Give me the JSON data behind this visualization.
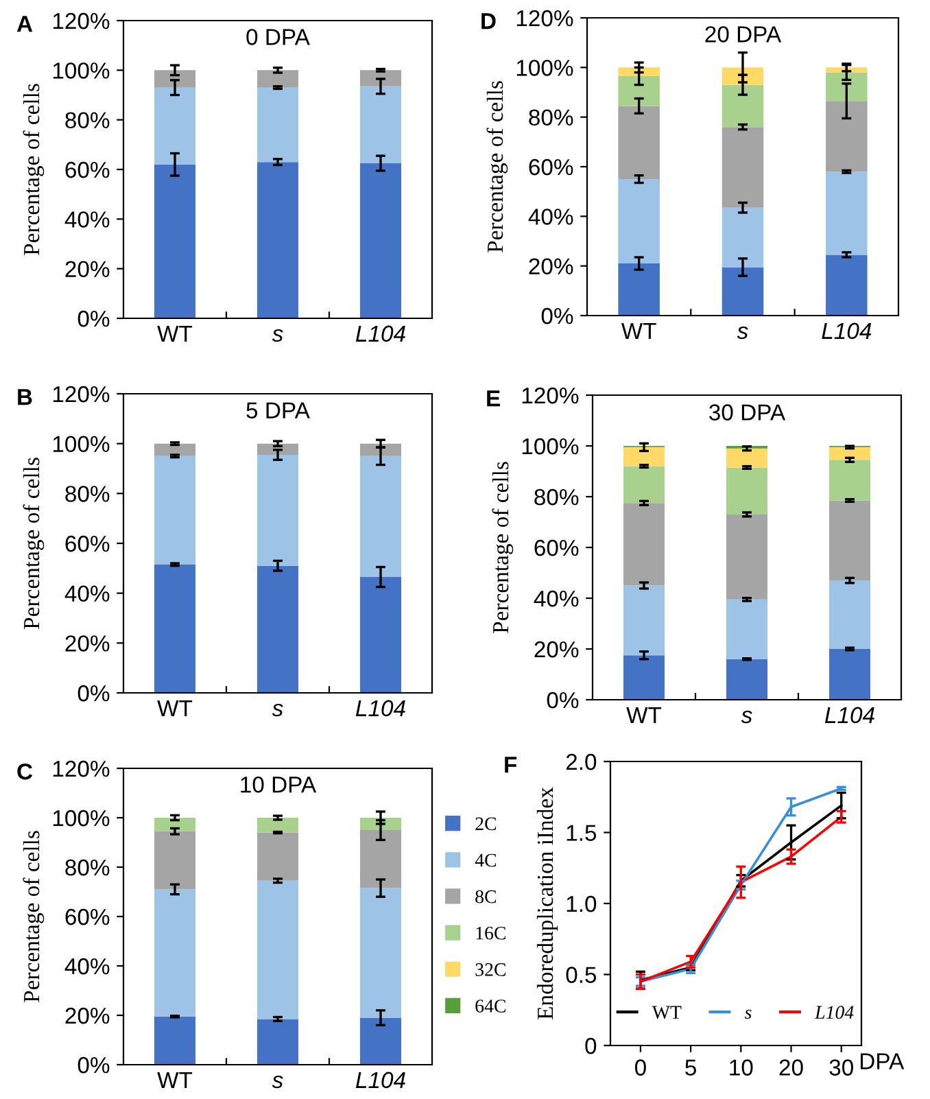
{
  "chart_data": [
    {
      "type": "bar",
      "stacked": true,
      "title": "0 DPA",
      "ylabel": "Percentage of cells",
      "annotations": [
        "A"
      ],
      "categories": [
        "WT",
        "s",
        "L104"
      ],
      "ylim": [
        0,
        120
      ],
      "yticks": [
        {
          "value": 0,
          "label": "0%"
        },
        {
          "value": 20,
          "label": "20%"
        },
        {
          "value": 40,
          "label": "40%"
        },
        {
          "value": 60,
          "label": "60%"
        },
        {
          "value": 80,
          "label": "80%"
        },
        {
          "value": 100,
          "label": "100%"
        },
        {
          "value": 120,
          "label": "120%"
        }
      ],
      "grid": false,
      "legend": false,
      "series": [
        {
          "color": "#4472c4",
          "values": [
            62,
            63,
            62.5
          ],
          "errors": [
            4.5,
            1.2,
            3
          ]
        },
        {
          "color": "#9dc3e6",
          "values": [
            31,
            30,
            31
          ],
          "errors": [
            3,
            0.5,
            3
          ]
        },
        {
          "color": "#a5a5a5",
          "values": [
            7,
            7,
            6.5
          ],
          "errors": [
            2,
            1,
            0.5
          ]
        }
      ]
    },
    {
      "type": "bar",
      "stacked": true,
      "title": "5 DPA",
      "ylabel": "Percentage of cells",
      "annotations": [
        "B"
      ],
      "categories": [
        "WT",
        "s",
        "L104"
      ],
      "ylim": [
        0,
        120
      ],
      "yticks": [
        {
          "value": 0,
          "label": "0%"
        },
        {
          "value": 20,
          "label": "20%"
        },
        {
          "value": 40,
          "label": "40%"
        },
        {
          "value": 60,
          "label": "60%"
        },
        {
          "value": 80,
          "label": "80%"
        },
        {
          "value": 100,
          "label": "100%"
        },
        {
          "value": 120,
          "label": "120%"
        }
      ],
      "grid": false,
      "legend": false,
      "series": [
        {
          "color": "#4472c4",
          "values": [
            51.5,
            51,
            46.5
          ],
          "errors": [
            0.5,
            2,
            4
          ]
        },
        {
          "color": "#9dc3e6",
          "values": [
            43.5,
            44.5,
            48.5
          ],
          "errors": [
            0.5,
            2,
            3.5
          ]
        },
        {
          "color": "#a5a5a5",
          "values": [
            5,
            4.5,
            5
          ],
          "errors": [
            0.5,
            1,
            1.5
          ]
        }
      ]
    },
    {
      "type": "bar",
      "stacked": true,
      "title": "10 DPA",
      "ylabel": "Percentage of cells",
      "annotations": [
        "C"
      ],
      "categories": [
        "WT",
        "s",
        "L104"
      ],
      "ylim": [
        0,
        120
      ],
      "yticks": [
        {
          "value": 0,
          "label": "0%"
        },
        {
          "value": 20,
          "label": "20%"
        },
        {
          "value": 40,
          "label": "40%"
        },
        {
          "value": 60,
          "label": "60%"
        },
        {
          "value": 80,
          "label": "80%"
        },
        {
          "value": 100,
          "label": "100%"
        },
        {
          "value": 120,
          "label": "120%"
        }
      ],
      "grid": false,
      "legend": "right",
      "series": [
        {
          "name": "2C",
          "color": "#4472c4",
          "values": [
            19.5,
            18.5,
            19
          ],
          "errors": [
            0.3,
            0.8,
            3
          ]
        },
        {
          "name": "4C",
          "color": "#9dc3e6",
          "values": [
            51.5,
            56,
            52.5
          ],
          "errors": [
            2,
            0.8,
            3.5
          ]
        },
        {
          "name": "8C",
          "color": "#a5a5a5",
          "values": [
            23.5,
            19.5,
            23.5
          ],
          "errors": [
            1.2,
            0.3,
            4
          ]
        },
        {
          "name": "16C",
          "color": "#a9d18e",
          "values": [
            5.5,
            6,
            5
          ],
          "errors": [
            1,
            0.8,
            2.5
          ]
        },
        {
          "name": "32C",
          "color": "#ffd966",
          "values": [
            null,
            null,
            null
          ]
        },
        {
          "name": "64C",
          "color": "#5a9e3c",
          "values": [
            null,
            null,
            null
          ]
        }
      ]
    },
    {
      "type": "bar",
      "stacked": true,
      "title": "20 DPA",
      "ylabel": "Percentage of cells",
      "annotations": [
        "D"
      ],
      "categories": [
        "WT",
        "s",
        "L104"
      ],
      "ylim": [
        0,
        120
      ],
      "yticks": [
        {
          "value": 0,
          "label": "0%"
        },
        {
          "value": 20,
          "label": "20%"
        },
        {
          "value": 40,
          "label": "40%"
        },
        {
          "value": 60,
          "label": "60%"
        },
        {
          "value": 80,
          "label": "80%"
        },
        {
          "value": 100,
          "label": "100%"
        },
        {
          "value": 120,
          "label": "120%"
        }
      ],
      "grid": false,
      "legend": false,
      "series": [
        {
          "color": "#4472c4",
          "values": [
            21,
            19.5,
            24.5
          ],
          "errors": [
            2.5,
            3.5,
            1
          ]
        },
        {
          "color": "#9dc3e6",
          "values": [
            34,
            24,
            33.5
          ],
          "errors": [
            1.5,
            2,
            0.5
          ]
        },
        {
          "color": "#a5a5a5",
          "values": [
            29.5,
            32.5,
            28.5
          ],
          "errors": [
            3,
            1,
            7
          ]
        },
        {
          "color": "#a9d18e",
          "values": [
            12,
            17,
            11.5
          ],
          "errors": [
            3.5,
            4,
            3
          ]
        },
        {
          "color": "#ffd966",
          "values": [
            3.5,
            7,
            2
          ],
          "errors": [
            2,
            6,
            1.5
          ]
        }
      ]
    },
    {
      "type": "bar",
      "stacked": true,
      "title": "30 DPA",
      "ylabel": "Percentage of cells",
      "annotations": [
        "E"
      ],
      "categories": [
        "WT",
        "s",
        "L104"
      ],
      "ylim": [
        0,
        120
      ],
      "yticks": [
        {
          "value": 0,
          "label": "0%"
        },
        {
          "value": 20,
          "label": "20%"
        },
        {
          "value": 40,
          "label": "40%"
        },
        {
          "value": 60,
          "label": "60%"
        },
        {
          "value": 80,
          "label": "80%"
        },
        {
          "value": 100,
          "label": "100%"
        },
        {
          "value": 120,
          "label": "120%"
        }
      ],
      "grid": false,
      "legend": false,
      "series": [
        {
          "color": "#4472c4",
          "values": [
            17.5,
            16,
            20
          ],
          "errors": [
            1.5,
            0.3,
            0.5
          ]
        },
        {
          "color": "#9dc3e6",
          "values": [
            27.5,
            23.5,
            27
          ],
          "errors": [
            1.2,
            0.6,
            1
          ]
        },
        {
          "color": "#a5a5a5",
          "values": [
            32.5,
            33.5,
            31.5
          ],
          "errors": [
            0.8,
            0.8,
            0.5
          ]
        },
        {
          "color": "#a9d18e",
          "values": [
            14.5,
            18.5,
            16
          ],
          "errors": [
            0.5,
            0.5,
            0.8
          ]
        },
        {
          "color": "#ffd966",
          "values": [
            7.5,
            7.5,
            5
          ],
          "errors": [
            1.5,
            0.8,
            0.5
          ]
        },
        {
          "color": "#5a9e3c",
          "values": [
            0.5,
            1,
            0.5
          ]
        }
      ]
    },
    {
      "type": "line",
      "ylabel": "Endoreduplication iIndex",
      "xlabel": "DPA",
      "annotations": [
        "F"
      ],
      "categories": [
        "0",
        "5",
        "10",
        "20",
        "30"
      ],
      "ylim": [
        0,
        2
      ],
      "yticks": [
        0,
        {
          "value": 0.5,
          "label": "0.5"
        },
        {
          "value": 1,
          "label": "1.0"
        },
        {
          "value": 1.5,
          "label": "1.5"
        },
        {
          "value": 2,
          "label": "2.0"
        }
      ],
      "grid": false,
      "legend": "bottom",
      "marker": "none",
      "series": [
        {
          "name": "WT",
          "color": "#000000",
          "values": [
            0.46,
            0.55,
            1.16,
            1.43,
            1.69
          ],
          "errors": [
            0.06,
            0.02,
            0.04,
            0.12,
            0.09
          ]
        },
        {
          "name": "s",
          "color": "#3a8fd9",
          "values": [
            0.45,
            0.54,
            1.13,
            1.68,
            1.81
          ],
          "errors": [
            0.03,
            0.03,
            0.03,
            0.06,
            0.01
          ]
        },
        {
          "name": "L104",
          "color": "#ff0000",
          "values": [
            0.45,
            0.59,
            1.15,
            1.33,
            1.61
          ],
          "errors": [
            0.05,
            0.04,
            0.11,
            0.05,
            0.04
          ]
        }
      ]
    }
  ]
}
